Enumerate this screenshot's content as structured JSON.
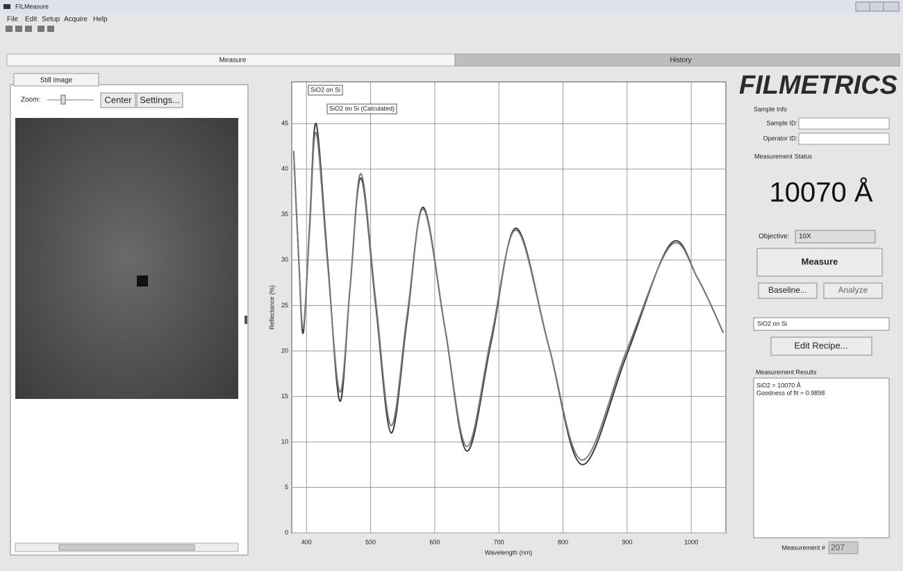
{
  "window": {
    "title": "FILMeasure"
  },
  "menu": [
    "File",
    "Edit",
    "Setup",
    "Acquire",
    "Help"
  ],
  "tabs": [
    "Measure",
    "History"
  ],
  "left_panel": {
    "tab": "Still Image",
    "zoom_label": "Zoom:",
    "buttons": [
      "Center",
      "Settings..."
    ]
  },
  "chart_data": {
    "type": "line",
    "x_label": "Wavelength (nm)",
    "y_label": "Reflectance (%)",
    "x": [
      380,
      388,
      395,
      405,
      415,
      433,
      452,
      468,
      485,
      508,
      532,
      557,
      582,
      616,
      650,
      688,
      727,
      778,
      830,
      899,
      968,
      1010,
      1050
    ],
    "series": [
      {
        "name": "SiO2 on Si",
        "color": "#3a3a3a",
        "values": [
          42,
          30,
          22,
          34,
          45,
          30,
          14.5,
          27,
          39,
          25,
          11,
          23.5,
          35.8,
          22.5,
          9,
          21,
          33.5,
          20.5,
          7.5,
          19.5,
          31.8,
          28,
          22
        ]
      },
      {
        "name": "SiO2 on Si (Calculated)",
        "color": "#7a7a7a",
        "values": [
          42,
          30,
          22.5,
          33.5,
          44,
          29.5,
          15.5,
          27,
          39.5,
          25.5,
          11.8,
          24,
          35.6,
          22.5,
          9.5,
          21.5,
          33.3,
          20.5,
          8,
          20,
          31.6,
          28,
          22
        ]
      }
    ],
    "xlim": [
      377,
      1054
    ],
    "ylim": [
      0,
      49.6
    ],
    "xticks": [
      400,
      500,
      600,
      700,
      800,
      900,
      1000
    ],
    "yticks": [
      0,
      5,
      10,
      15,
      20,
      25,
      30,
      35,
      40,
      45
    ],
    "grid": true
  },
  "right_panel": {
    "logo": "FILMETRICS",
    "sample_info": "Sample Info",
    "sample_id": "Sample ID:",
    "operator_id": "Operator ID:",
    "status_label": "Measurement Status",
    "status_value": "10070 Å",
    "objective_label": "Objective:",
    "objective": "10X",
    "measure": "Measure",
    "baseline": "Baseline...",
    "analyze": "Analyze",
    "recipe": "SiO2 on Si",
    "edit_recipe": "Edit Recipe...",
    "results_label": "Measurement Results",
    "results": [
      "SiO2 = 10070 Å",
      "Goodness of fit = 0.9898"
    ],
    "measurement_no_label": "Measurement #",
    "measurement_no": "207"
  }
}
